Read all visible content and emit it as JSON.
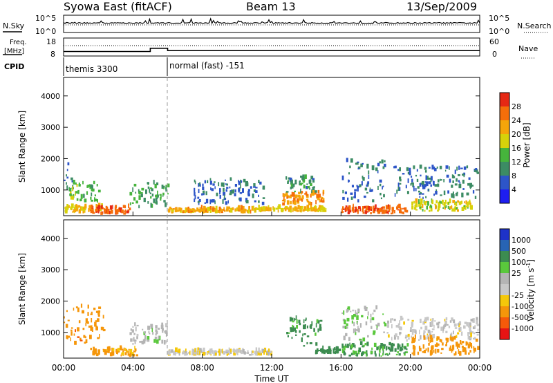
{
  "header": {
    "station": "Syowa East (fitACF)",
    "beam": "Beam 13",
    "date": "13/Sep/2009"
  },
  "noise_panel": {
    "left_label": "N.Sky",
    "right_label": "N.Search",
    "left_ticks": [
      "10^5",
      "10^0"
    ],
    "right_ticks": [
      "10^5",
      "10^0"
    ]
  },
  "freq_panel": {
    "left_label_1": "Freq.",
    "left_label_2": "[MHz]",
    "left_ticks": [
      "18",
      "8"
    ],
    "right_label": "Nave",
    "right_ticks": [
      "60",
      "0"
    ],
    "freq_steps": [
      {
        "from_hour": 0,
        "to_hour": 5.0,
        "mhz": 10.5
      },
      {
        "from_hour": 5.0,
        "to_hour": 6.0,
        "mhz": 12.3
      },
      {
        "from_hour": 6.0,
        "to_hour": 24.0,
        "mhz": 11.0
      }
    ]
  },
  "cpid": {
    "label": "CPID",
    "modes": [
      {
        "name": "themis 3300",
        "from_hour": 0,
        "to_hour": 6.0
      },
      {
        "name": "normal (fast) -151",
        "from_hour": 6.0,
        "to_hour": 24.0
      }
    ]
  },
  "chart_data": [
    {
      "type": "heatmap",
      "panel": "power",
      "ylabel": "Slant Range [km]",
      "xlabel": "",
      "ylim": [
        180,
        4590
      ],
      "xlim": [
        0,
        24
      ],
      "y_ticks": [
        1000,
        2000,
        3000,
        4000
      ],
      "x_ticks": [
        "00:00",
        "04:00",
        "08:00",
        "12:00",
        "16:00",
        "20:00",
        "00:00"
      ],
      "colorbar_label": "Power [dB]",
      "colorbar_ticks": [
        "4",
        "8",
        "12",
        "16",
        "20",
        "24",
        "28"
      ],
      "colorbar_colors": [
        "#1e1ef0",
        "#2d55c8",
        "#3c8c64",
        "#46b43c",
        "#d7d20a",
        "#f5a50a",
        "#f56e0a",
        "#e62814"
      ],
      "regions": [
        {
          "h0": 0.0,
          "h1": 0.5,
          "r0": 900,
          "r1": 1800,
          "value": 8
        },
        {
          "h0": 0.3,
          "h1": 2.0,
          "r0": 600,
          "r1": 1200,
          "value": 14
        },
        {
          "h0": 0.0,
          "h1": 2.2,
          "r0": 250,
          "r1": 450,
          "value": 20
        },
        {
          "h0": 1.5,
          "h1": 3.8,
          "r0": 200,
          "r1": 430,
          "value": 27
        },
        {
          "h0": 3.8,
          "h1": 6.0,
          "r0": 400,
          "r1": 1200,
          "value": 12
        },
        {
          "h0": 6.0,
          "h1": 11.0,
          "r0": 250,
          "r1": 380,
          "value": 22
        },
        {
          "h0": 11.0,
          "h1": 15.2,
          "r0": 280,
          "r1": 400,
          "value": 20
        },
        {
          "h0": 12.5,
          "h1": 15.0,
          "r0": 500,
          "r1": 900,
          "value": 24
        },
        {
          "h0": 12.8,
          "h1": 14.5,
          "r0": 900,
          "r1": 1400,
          "value": 10
        },
        {
          "h0": 7.5,
          "h1": 11.5,
          "r0": 500,
          "r1": 1300,
          "value": 7
        },
        {
          "h0": 16.0,
          "h1": 19.8,
          "r0": 220,
          "r1": 420,
          "value": 27
        },
        {
          "h0": 16.0,
          "h1": 18.5,
          "r0": 600,
          "r1": 1900,
          "value": 8
        },
        {
          "h0": 19.0,
          "h1": 24.0,
          "r0": 700,
          "r1": 1700,
          "value": 8
        },
        {
          "h0": 20.0,
          "h1": 23.5,
          "r0": 300,
          "r1": 600,
          "value": 18
        }
      ]
    },
    {
      "type": "heatmap",
      "panel": "velocity",
      "ylabel": "Slant Range [km]",
      "xlabel": "Time UT",
      "ylim": [
        180,
        4590
      ],
      "xlim": [
        0,
        24
      ],
      "y_ticks": [
        1000,
        2000,
        3000,
        4000
      ],
      "x_ticks": [
        "00:00",
        "04:00",
        "08:00",
        "12:00",
        "16:00",
        "20:00",
        "00:00"
      ],
      "colorbar_label": "Velocity [m s",
      "colorbar_label_sup": "-1",
      "colorbar_ticks": [
        "1000",
        "500",
        "100",
        "25",
        "-25",
        "-100",
        "-500",
        "-1000"
      ],
      "colorbar_colors": [
        "#1e32c8",
        "#2864b4",
        "#3c8c50",
        "#5ac83c",
        "#b4b4b4",
        "#c8c8c8",
        "#f5c80a",
        "#f5960a",
        "#f55a0a",
        "#e61414"
      ],
      "regions": [
        {
          "h0": 0.0,
          "h1": 2.3,
          "r0": 600,
          "r1": 1800,
          "value": -350
        },
        {
          "h0": 1.5,
          "h1": 4.2,
          "r0": 220,
          "r1": 450,
          "value": -120
        },
        {
          "h0": 3.8,
          "h1": 6.0,
          "r0": 600,
          "r1": 1200,
          "value": 10
        },
        {
          "h0": 6.0,
          "h1": 12.0,
          "r0": 250,
          "r1": 380,
          "value": -15
        },
        {
          "h0": 12.8,
          "h1": 14.8,
          "r0": 500,
          "r1": 1400,
          "value": 150
        },
        {
          "h0": 14.5,
          "h1": 16.0,
          "r0": 300,
          "r1": 450,
          "value": 200
        },
        {
          "h0": 16.0,
          "h1": 19.8,
          "r0": 220,
          "r1": 600,
          "value": 120
        },
        {
          "h0": 16.0,
          "h1": 18.5,
          "r0": 700,
          "r1": 1800,
          "value": 20
        },
        {
          "h0": 18.5,
          "h1": 24.0,
          "r0": 700,
          "r1": 1400,
          "value": -10
        },
        {
          "h0": 20.0,
          "h1": 24.0,
          "r0": 250,
          "r1": 800,
          "value": -300
        }
      ]
    }
  ]
}
